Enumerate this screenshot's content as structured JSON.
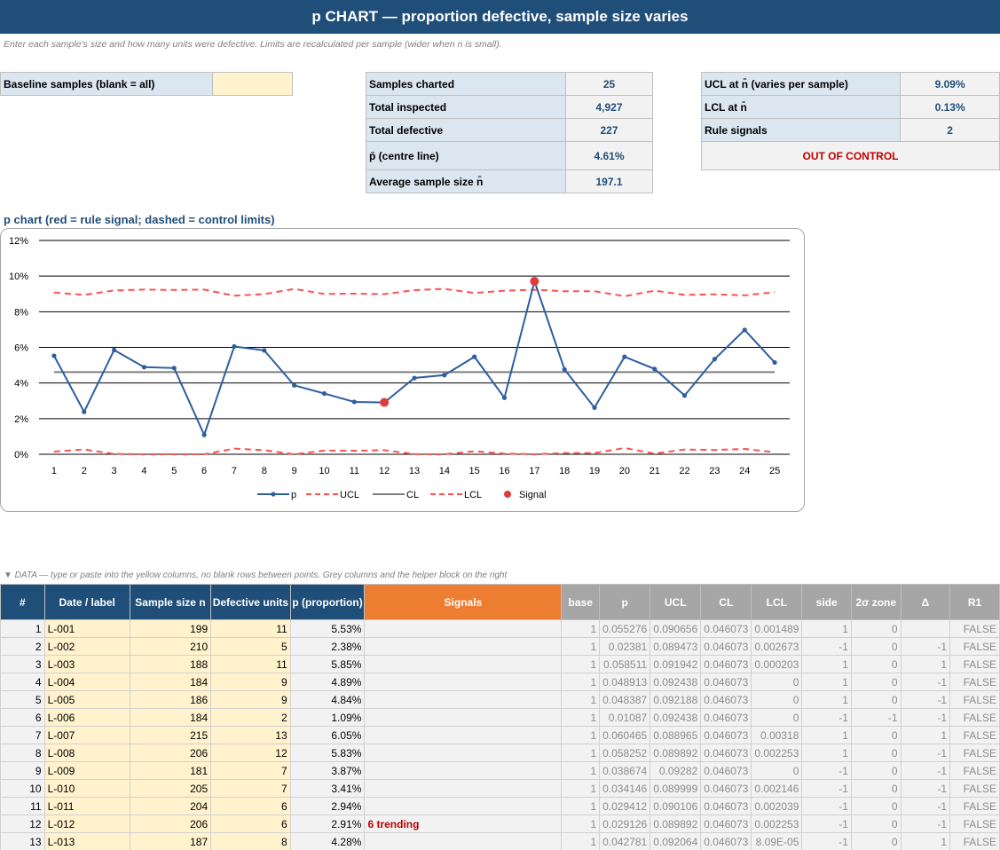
{
  "title": "p CHART  —  proportion defective, sample size varies",
  "subtitle": "Enter each sample's size and how many units were defective. Limits are recalculated per sample (wider when n is small).",
  "baseline": {
    "label": "Baseline samples (blank = all)",
    "value": ""
  },
  "summary": [
    {
      "label": "Samples charted",
      "value": "25"
    },
    {
      "label": "Total inspected",
      "value": "4,927"
    },
    {
      "label": "Total defective",
      "value": "227"
    },
    {
      "label": "p̄  (centre line)",
      "value": "4.61%"
    },
    {
      "label": "Average sample size n̄",
      "value": "197.1"
    }
  ],
  "limits": [
    {
      "label": "UCL at n̄  (varies per sample)",
      "value": "9.09%"
    },
    {
      "label": "LCL at n̄",
      "value": "0.13%"
    },
    {
      "label": "Rule signals",
      "value": "2"
    }
  ],
  "status": "OUT OF CONTROL",
  "chart_title": "p chart (red = rule signal; dashed = control limits)",
  "chart_data": {
    "type": "line",
    "x": [
      1,
      2,
      3,
      4,
      5,
      6,
      7,
      8,
      9,
      10,
      11,
      12,
      13,
      14,
      15,
      16,
      17,
      18,
      19,
      20,
      21,
      22,
      23,
      24,
      25
    ],
    "y_tick_labels": [
      "0%",
      "2%",
      "4%",
      "6%",
      "8%",
      "10%",
      "12%"
    ],
    "ylim": [
      0,
      12
    ],
    "grid": true,
    "legend_position": "bottom",
    "series": [
      {
        "name": "p",
        "color": "#2e5e9e",
        "values": [
          5.53,
          2.38,
          5.85,
          4.89,
          4.84,
          1.09,
          6.05,
          5.83,
          3.87,
          3.41,
          2.94,
          2.91,
          4.28,
          4.44,
          5.47,
          3.17,
          9.71,
          4.76,
          2.62,
          5.47,
          4.79,
          3.3,
          5.34,
          6.98,
          5.15
        ]
      },
      {
        "name": "UCL",
        "color": "#ff5050",
        "values": [
          9.07,
          8.95,
          9.19,
          9.24,
          9.22,
          9.24,
          8.9,
          8.99,
          9.28,
          9.0,
          9.01,
          8.99,
          9.21,
          9.28,
          9.05,
          9.18,
          9.23,
          9.15,
          9.15,
          8.87,
          9.18,
          8.95,
          8.98,
          8.92,
          9.1
        ]
      },
      {
        "name": "CL",
        "color": "#7f7f7f",
        "values": [
          4.61,
          4.61,
          4.61,
          4.61,
          4.61,
          4.61,
          4.61,
          4.61,
          4.61,
          4.61,
          4.61,
          4.61,
          4.61,
          4.61,
          4.61,
          4.61,
          4.61,
          4.61,
          4.61,
          4.61,
          4.61,
          4.61,
          4.61,
          4.61,
          4.61
        ]
      },
      {
        "name": "LCL",
        "color": "#ff5050",
        "values": [
          0.15,
          0.27,
          0.02,
          0,
          0,
          0,
          0.32,
          0.23,
          0,
          0.21,
          0.2,
          0.23,
          0.01,
          0,
          0.17,
          0.04,
          0,
          0.07,
          0.07,
          0.35,
          0.04,
          0.27,
          0.24,
          0.3,
          0.12
        ]
      },
      {
        "name": "Signal",
        "color": "#e03c3c",
        "points": [
          {
            "x": 12,
            "y": 2.91
          },
          {
            "x": 17,
            "y": 9.71
          }
        ]
      }
    ]
  },
  "data_caption": "▼ DATA — type or paste into the yellow columns, no blank rows between points. Grey columns and the helper block on the right",
  "columns": [
    "#",
    "Date / label",
    "Sample size n",
    "Defective units",
    "p (proportion)",
    "Signals",
    "base",
    "p",
    "UCL",
    "CL",
    "LCL",
    "side",
    "2σ zone",
    "Δ",
    "R1"
  ],
  "rows": [
    {
      "i": "1",
      "label": "L-001",
      "n": "199",
      "d": "11",
      "p": "5.53%",
      "sig": "",
      "base": "1",
      "hp": "0.055276",
      "ucl": "0.090656",
      "cl": "0.046073",
      "lcl": "0.001489",
      "side": "1",
      "zone": "0",
      "delta": "",
      "r1": "FALSE"
    },
    {
      "i": "2",
      "label": "L-002",
      "n": "210",
      "d": "5",
      "p": "2.38%",
      "sig": "",
      "base": "1",
      "hp": "0.02381",
      "ucl": "0.089473",
      "cl": "0.046073",
      "lcl": "0.002673",
      "side": "-1",
      "zone": "0",
      "delta": "-1",
      "r1": "FALSE"
    },
    {
      "i": "3",
      "label": "L-003",
      "n": "188",
      "d": "11",
      "p": "5.85%",
      "sig": "",
      "base": "1",
      "hp": "0.058511",
      "ucl": "0.091942",
      "cl": "0.046073",
      "lcl": "0.000203",
      "side": "1",
      "zone": "0",
      "delta": "1",
      "r1": "FALSE"
    },
    {
      "i": "4",
      "label": "L-004",
      "n": "184",
      "d": "9",
      "p": "4.89%",
      "sig": "",
      "base": "1",
      "hp": "0.048913",
      "ucl": "0.092438",
      "cl": "0.046073",
      "lcl": "0",
      "side": "1",
      "zone": "0",
      "delta": "-1",
      "r1": "FALSE"
    },
    {
      "i": "5",
      "label": "L-005",
      "n": "186",
      "d": "9",
      "p": "4.84%",
      "sig": "",
      "base": "1",
      "hp": "0.048387",
      "ucl": "0.092188",
      "cl": "0.046073",
      "lcl": "0",
      "side": "1",
      "zone": "0",
      "delta": "-1",
      "r1": "FALSE"
    },
    {
      "i": "6",
      "label": "L-006",
      "n": "184",
      "d": "2",
      "p": "1.09%",
      "sig": "",
      "base": "1",
      "hp": "0.01087",
      "ucl": "0.092438",
      "cl": "0.046073",
      "lcl": "0",
      "side": "-1",
      "zone": "-1",
      "delta": "-1",
      "r1": "FALSE"
    },
    {
      "i": "7",
      "label": "L-007",
      "n": "215",
      "d": "13",
      "p": "6.05%",
      "sig": "",
      "base": "1",
      "hp": "0.060465",
      "ucl": "0.088965",
      "cl": "0.046073",
      "lcl": "0.00318",
      "side": "1",
      "zone": "0",
      "delta": "1",
      "r1": "FALSE"
    },
    {
      "i": "8",
      "label": "L-008",
      "n": "206",
      "d": "12",
      "p": "5.83%",
      "sig": "",
      "base": "1",
      "hp": "0.058252",
      "ucl": "0.089892",
      "cl": "0.046073",
      "lcl": "0.002253",
      "side": "1",
      "zone": "0",
      "delta": "-1",
      "r1": "FALSE"
    },
    {
      "i": "9",
      "label": "L-009",
      "n": "181",
      "d": "7",
      "p": "3.87%",
      "sig": "",
      "base": "1",
      "hp": "0.038674",
      "ucl": "0.09282",
      "cl": "0.046073",
      "lcl": "0",
      "side": "-1",
      "zone": "0",
      "delta": "-1",
      "r1": "FALSE"
    },
    {
      "i": "10",
      "label": "L-010",
      "n": "205",
      "d": "7",
      "p": "3.41%",
      "sig": "",
      "base": "1",
      "hp": "0.034146",
      "ucl": "0.089999",
      "cl": "0.046073",
      "lcl": "0.002146",
      "side": "-1",
      "zone": "0",
      "delta": "-1",
      "r1": "FALSE"
    },
    {
      "i": "11",
      "label": "L-011",
      "n": "204",
      "d": "6",
      "p": "2.94%",
      "sig": "",
      "base": "1",
      "hp": "0.029412",
      "ucl": "0.090106",
      "cl": "0.046073",
      "lcl": "0.002039",
      "side": "-1",
      "zone": "0",
      "delta": "-1",
      "r1": "FALSE"
    },
    {
      "i": "12",
      "label": "L-012",
      "n": "206",
      "d": "6",
      "p": "2.91%",
      "sig": "6 trending",
      "base": "1",
      "hp": "0.029126",
      "ucl": "0.089892",
      "cl": "0.046073",
      "lcl": "0.002253",
      "side": "-1",
      "zone": "0",
      "delta": "-1",
      "r1": "FALSE"
    },
    {
      "i": "13",
      "label": "L-013",
      "n": "187",
      "d": "8",
      "p": "4.28%",
      "sig": "",
      "base": "1",
      "hp": "0.042781",
      "ucl": "0.092064",
      "cl": "0.046073",
      "lcl": "8.09E-05",
      "side": "-1",
      "zone": "0",
      "delta": "1",
      "r1": "FALSE"
    }
  ]
}
